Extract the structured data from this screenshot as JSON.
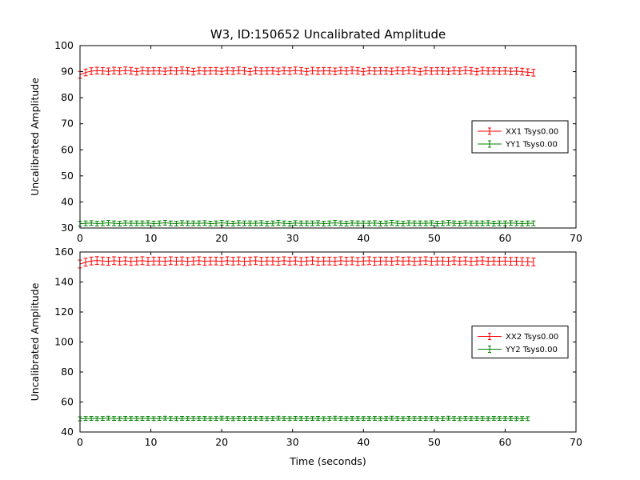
{
  "figure": {
    "title": "W3, ID:150652 Uncalibrated Amplitude",
    "background": "#ffffff",
    "axis_color": "#000000"
  },
  "chart_data": [
    {
      "type": "line",
      "subplot": "top",
      "title": "",
      "xlabel": "",
      "ylabel": "Uncalibrated Amplitude",
      "xlim": [
        0,
        70
      ],
      "ylim": [
        30,
        100
      ],
      "xticks": [
        0,
        10,
        20,
        30,
        40,
        50,
        60,
        70
      ],
      "yticks": [
        30,
        40,
        50,
        60,
        70,
        80,
        90,
        100
      ],
      "grid": false,
      "legend_position": "center right",
      "x_start": 0,
      "x_step": 0.8,
      "series": [
        {
          "name": "XX1 Tsys0.00",
          "color": "#ff0000",
          "yerr": 1.3,
          "values": [
            88.8,
            89.7,
            90.2,
            90.4,
            90.3,
            90.1,
            90.4,
            90.2,
            90.5,
            90.3,
            90.0,
            90.4,
            90.2,
            90.3,
            90.3,
            90.1,
            90.4,
            90.2,
            90.5,
            90.3,
            90.0,
            90.4,
            90.2,
            90.3,
            90.3,
            90.1,
            90.4,
            90.2,
            90.5,
            90.3,
            90.0,
            90.4,
            90.2,
            90.3,
            90.3,
            90.1,
            90.4,
            90.2,
            90.5,
            90.3,
            90.0,
            90.4,
            90.2,
            90.3,
            90.3,
            90.1,
            90.4,
            90.2,
            90.5,
            90.3,
            90.0,
            90.4,
            90.2,
            90.3,
            90.3,
            90.1,
            90.4,
            90.2,
            90.5,
            90.3,
            90.0,
            90.4,
            90.2,
            90.3,
            90.3,
            90.1,
            90.4,
            90.2,
            90.5,
            90.3,
            90.0,
            90.4,
            90.2,
            90.3,
            90.2,
            90.3,
            90.1,
            90.2,
            90.0,
            89.8,
            89.6
          ]
        },
        {
          "name": "YY1 Tsys0.00",
          "color": "#008000",
          "yerr": 0.9,
          "values": [
            31.6,
            31.8,
            31.9,
            31.7,
            31.8,
            32.0,
            31.8,
            31.7,
            31.9,
            31.8,
            31.8,
            31.8,
            31.9,
            31.7,
            31.8,
            32.0,
            31.8,
            31.7,
            31.9,
            31.8,
            31.8,
            31.8,
            31.9,
            31.7,
            31.8,
            32.0,
            31.8,
            31.7,
            31.9,
            31.8,
            31.8,
            31.8,
            31.9,
            31.7,
            31.8,
            32.0,
            31.8,
            31.7,
            31.9,
            31.8,
            31.8,
            31.8,
            31.9,
            31.7,
            31.8,
            32.0,
            31.8,
            31.7,
            31.9,
            31.8,
            31.8,
            31.8,
            31.9,
            31.7,
            31.8,
            32.0,
            31.8,
            31.7,
            31.9,
            31.8,
            31.8,
            31.8,
            31.9,
            31.7,
            31.8,
            32.0,
            31.8,
            31.7,
            31.9,
            31.8,
            31.8,
            31.8,
            31.9,
            31.7,
            31.8,
            31.8,
            31.9,
            31.8,
            31.7,
            31.8,
            31.8
          ]
        }
      ]
    },
    {
      "type": "line",
      "subplot": "bottom",
      "title": "",
      "xlabel": "Time (seconds)",
      "ylabel": "Uncalibrated Amplitude",
      "xlim": [
        0,
        70
      ],
      "ylim": [
        40,
        160
      ],
      "xticks": [
        0,
        10,
        20,
        30,
        40,
        50,
        60,
        70
      ],
      "yticks": [
        40,
        60,
        80,
        100,
        120,
        140,
        160
      ],
      "grid": false,
      "legend_position": "center right",
      "x_start": 0,
      "x_step": 0.8,
      "series": [
        {
          "name": "XX2 Tsys0.00",
          "color": "#ff0000",
          "yerr": 2.6,
          "values": [
            152.0,
            153.2,
            154.0,
            154.3,
            154.0,
            153.8,
            154.2,
            153.9,
            154.1,
            153.7,
            154.0,
            154.2,
            153.8,
            154.0,
            154.0,
            153.8,
            154.2,
            153.9,
            154.1,
            153.7,
            154.0,
            154.2,
            153.8,
            154.0,
            154.0,
            153.8,
            154.2,
            153.9,
            154.1,
            153.7,
            154.0,
            154.2,
            153.8,
            154.0,
            154.0,
            153.8,
            154.2,
            153.9,
            154.1,
            153.7,
            154.0,
            154.2,
            153.8,
            154.0,
            154.0,
            153.8,
            154.2,
            153.9,
            154.1,
            153.7,
            154.0,
            154.2,
            153.8,
            154.0,
            154.0,
            153.8,
            154.2,
            153.9,
            154.1,
            153.7,
            154.0,
            154.2,
            153.8,
            154.0,
            154.0,
            153.8,
            154.2,
            153.9,
            154.1,
            153.7,
            154.0,
            154.2,
            153.8,
            154.0,
            153.9,
            154.0,
            153.8,
            153.9,
            153.7,
            153.6,
            153.4
          ]
        },
        {
          "name": "YY2 Tsys0.00",
          "color": "#008000",
          "yerr": 1.3,
          "values": [
            48.8,
            49.0,
            49.1,
            48.9,
            49.0,
            49.2,
            49.0,
            48.9,
            49.1,
            49.0,
            49.0,
            49.0,
            49.1,
            48.9,
            49.0,
            49.2,
            49.0,
            48.9,
            49.1,
            49.0,
            49.0,
            49.0,
            49.1,
            48.9,
            49.0,
            49.2,
            49.0,
            48.9,
            49.1,
            49.0,
            49.0,
            49.0,
            49.1,
            48.9,
            49.0,
            49.2,
            49.0,
            48.9,
            49.1,
            49.0,
            49.0,
            49.0,
            49.1,
            48.9,
            49.0,
            49.2,
            49.0,
            48.9,
            49.1,
            49.0,
            49.0,
            49.0,
            49.1,
            48.9,
            49.0,
            49.2,
            49.0,
            48.9,
            49.1,
            49.0,
            49.0,
            49.0,
            49.1,
            48.9,
            49.0,
            49.2,
            49.0,
            48.9,
            49.1,
            49.0,
            49.0,
            49.0,
            48.9,
            49.1,
            49.0,
            49.0,
            49.1,
            48.9,
            49.0,
            48.9
          ]
        }
      ]
    }
  ]
}
